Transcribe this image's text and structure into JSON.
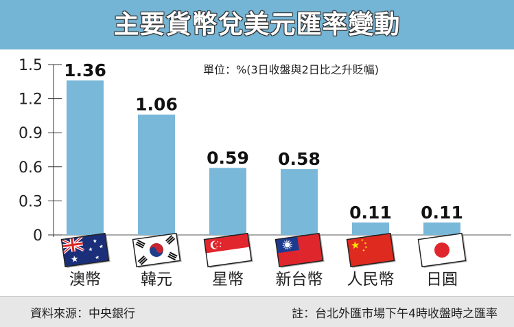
{
  "header": {
    "title": "主要貨幣兌美元匯率變動"
  },
  "unit_note": "單位：%(3日收盤與2日比之升貶幅)",
  "footer": {
    "source": "資料來源：中央銀行",
    "note": "註：台北外匯市場下午4時收盤時之匯率"
  },
  "colors": {
    "header_bg": "#74b4d4",
    "bar": "#7ab8d9",
    "footer_bg": "#e7e7e7"
  },
  "chart_data": {
    "type": "bar",
    "title": "主要貨幣兌美元匯率變動",
    "categories": [
      "澳幣",
      "韓元",
      "星幣",
      "新台幣",
      "人民幣",
      "日圓"
    ],
    "values": [
      1.36,
      1.06,
      0.59,
      0.58,
      0.11,
      0.11
    ],
    "value_labels": [
      "1.36",
      "1.06",
      "0.59",
      "0.58",
      "0.11",
      "0.11"
    ],
    "flags": [
      "australia-flag-icon",
      "south-korea-flag-icon",
      "singapore-flag-icon",
      "taiwan-flag-icon",
      "china-flag-icon",
      "japan-flag-icon"
    ],
    "ylim": [
      0,
      1.5
    ],
    "yticks": [
      "0",
      "0.3",
      "0.6",
      "0.9",
      "1.2",
      "1.5"
    ],
    "ytick_values": [
      0,
      0.3,
      0.6,
      0.9,
      1.2,
      1.5
    ],
    "xlabel": "",
    "ylabel": "",
    "grid": false,
    "legend": "none"
  }
}
